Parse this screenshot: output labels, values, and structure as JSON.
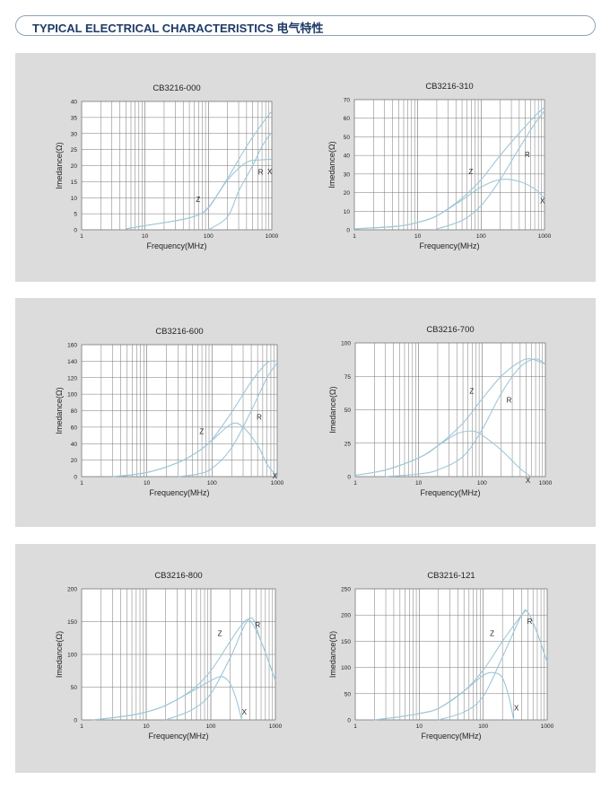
{
  "header": {
    "title": "TYPICAL ELECTRICAL CHARACTERISTICS 电气特性"
  },
  "chart_data": [
    {
      "type": "line",
      "title": "CB3216-000",
      "xlabel": "Frequency(MHz)",
      "ylabel": "Imedance(Ω)",
      "x_scale": "log",
      "xlim": [
        1,
        1000
      ],
      "ylim": [
        0,
        40
      ],
      "x_ticks": [
        "1",
        "10",
        "100",
        "1000"
      ],
      "y_ticks": [
        "0",
        "5",
        "10",
        "15",
        "20",
        "25",
        "30",
        "35",
        "40"
      ],
      "grid": true,
      "series": [
        {
          "name": "Z",
          "x": [
            5,
            10,
            30,
            60,
            100,
            200,
            400,
            700,
            1000
          ],
          "y": [
            0.3,
            1.3,
            2.8,
            4.2,
            7,
            16,
            26,
            33,
            37
          ]
        },
        {
          "name": "X",
          "x": [
            5,
            10,
            30,
            60,
            100,
            200,
            400,
            700,
            1000
          ],
          "y": [
            0.3,
            1.3,
            2.8,
            4.2,
            6.8,
            15.5,
            21,
            21.8,
            22
          ]
        },
        {
          "name": "R",
          "x": [
            100,
            200,
            300,
            500,
            700,
            1000
          ],
          "y": [
            0,
            4,
            12,
            20,
            26,
            30.5
          ]
        }
      ]
    },
    {
      "type": "line",
      "title": "CB3216-310",
      "xlabel": "Frequency(MHz)",
      "ylabel": "Imedance(Ω)",
      "x_scale": "log",
      "xlim": [
        1,
        1000
      ],
      "ylim": [
        0,
        70
      ],
      "x_ticks": [
        "1",
        "10",
        "100",
        "1000"
      ],
      "y_ticks": [
        "0",
        "10",
        "20",
        "30",
        "40",
        "50",
        "60",
        "70"
      ],
      "grid": true,
      "series": [
        {
          "name": "Z",
          "x": [
            1,
            5,
            10,
            20,
            50,
            100,
            200,
            400,
            700,
            1000
          ],
          "y": [
            0.5,
            2,
            4,
            7.5,
            17,
            27,
            40,
            52,
            61,
            66
          ]
        },
        {
          "name": "X",
          "x": [
            1,
            5,
            10,
            20,
            50,
            100,
            200,
            400,
            700,
            1000
          ],
          "y": [
            0.5,
            2,
            4,
            7.5,
            16,
            23,
            27,
            26,
            22,
            17
          ]
        },
        {
          "name": "R",
          "x": [
            20,
            50,
            100,
            200,
            400,
            700,
            1000
          ],
          "y": [
            0.5,
            5,
            13,
            27,
            44,
            57,
            64
          ]
        }
      ]
    },
    {
      "type": "line",
      "title": "CB3216-600",
      "xlabel": "Frequency(MHz)",
      "ylabel": "Imedance(Ω)",
      "x_scale": "log",
      "xlim": [
        1,
        1000
      ],
      "ylim": [
        0,
        160
      ],
      "x_ticks": [
        "1",
        "10",
        "100",
        "1000"
      ],
      "y_ticks": [
        "0",
        "20",
        "40",
        "60",
        "80",
        "100",
        "120",
        "140",
        "160"
      ],
      "grid": true,
      "series": [
        {
          "name": "Z",
          "x": [
            3,
            10,
            30,
            60,
            100,
            200,
            400,
            700,
            1000
          ],
          "y": [
            0,
            5,
            17,
            30,
            45,
            78,
            115,
            138,
            140
          ]
        },
        {
          "name": "X",
          "x": [
            3,
            10,
            30,
            60,
            100,
            200,
            300,
            500,
            700,
            1000
          ],
          "y": [
            0,
            5,
            17,
            30,
            44,
            64,
            60,
            38,
            15,
            0
          ]
        },
        {
          "name": "R",
          "x": [
            30,
            60,
            100,
            200,
            400,
            700,
            1000
          ],
          "y": [
            0,
            3,
            10,
            35,
            80,
            120,
            138
          ]
        }
      ]
    },
    {
      "type": "line",
      "title": "CB3216-700",
      "xlabel": "Frequency(MHz)",
      "ylabel": "Imedance(Ω)",
      "x_scale": "log",
      "xlim": [
        1,
        1000
      ],
      "ylim": [
        0,
        100
      ],
      "x_ticks": [
        "1",
        "10",
        "100",
        "1000"
      ],
      "y_ticks": [
        "0",
        "25",
        "50",
        "75",
        "100"
      ],
      "grid": true,
      "series": [
        {
          "name": "Z",
          "x": [
            1,
            3,
            10,
            20,
            50,
            100,
            200,
            400,
            600,
            1000
          ],
          "y": [
            1,
            5,
            14,
            23,
            40,
            58,
            75,
            86,
            88,
            84
          ]
        },
        {
          "name": "X",
          "x": [
            1,
            3,
            10,
            20,
            40,
            70,
            100,
            200,
            400,
            600
          ],
          "y": [
            1,
            5,
            14,
            23,
            32,
            34,
            31,
            20,
            6,
            0
          ]
        },
        {
          "name": "R",
          "x": [
            3,
            10,
            20,
            50,
            100,
            200,
            400,
            700,
            1000
          ],
          "y": [
            0,
            2,
            5,
            15,
            35,
            62,
            82,
            88,
            84
          ]
        }
      ]
    },
    {
      "type": "line",
      "title": "CB3216-800",
      "xlabel": "Frequency(MHz)",
      "ylabel": "Imedance(Ω)",
      "x_scale": "log",
      "xlim": [
        1,
        1000
      ],
      "ylim": [
        0,
        200
      ],
      "x_ticks": [
        "1",
        "10",
        "100",
        "1000"
      ],
      "y_ticks": [
        "0",
        "50",
        "100",
        "150",
        "200"
      ],
      "grid": true,
      "series": [
        {
          "name": "Z",
          "x": [
            1.5,
            5,
            10,
            20,
            50,
            100,
            200,
            300,
            400,
            600,
            1000
          ],
          "y": [
            0,
            6,
            12,
            22,
            45,
            75,
            120,
            145,
            152,
            120,
            60
          ]
        },
        {
          "name": "X",
          "x": [
            1.5,
            5,
            10,
            20,
            50,
            100,
            150,
            200,
            250,
            300
          ],
          "y": [
            0,
            6,
            12,
            22,
            43,
            60,
            66,
            55,
            30,
            0
          ]
        },
        {
          "name": "R",
          "x": [
            20,
            50,
            100,
            200,
            400,
            600,
            1000
          ],
          "y": [
            0,
            15,
            40,
            95,
            155,
            120,
            60
          ]
        }
      ]
    },
    {
      "type": "line",
      "title": "CB3216-121",
      "xlabel": "Frequency(MHz)",
      "ylabel": "Imedance(Ω)",
      "x_scale": "log",
      "xlim": [
        1,
        1000
      ],
      "ylim": [
        0,
        250
      ],
      "x_ticks": [
        "1",
        "10",
        "100",
        "1000"
      ],
      "y_ticks": [
        "0",
        "50",
        "100",
        "150",
        "200",
        "250"
      ],
      "grid": true,
      "series": [
        {
          "name": "Z",
          "x": [
            2,
            5,
            10,
            20,
            50,
            100,
            200,
            400,
            500,
            700,
            1000
          ],
          "y": [
            0,
            6,
            12,
            22,
            55,
            95,
            150,
            200,
            205,
            165,
            110
          ]
        },
        {
          "name": "X",
          "x": [
            2,
            5,
            10,
            20,
            50,
            100,
            150,
            200,
            250,
            300
          ],
          "y": [
            0,
            6,
            12,
            22,
            55,
            85,
            90,
            80,
            45,
            0
          ]
        },
        {
          "name": "R",
          "x": [
            20,
            50,
            100,
            200,
            400,
            500,
            700,
            1000
          ],
          "y": [
            0,
            15,
            45,
            120,
            200,
            205,
            165,
            110
          ]
        }
      ]
    }
  ]
}
